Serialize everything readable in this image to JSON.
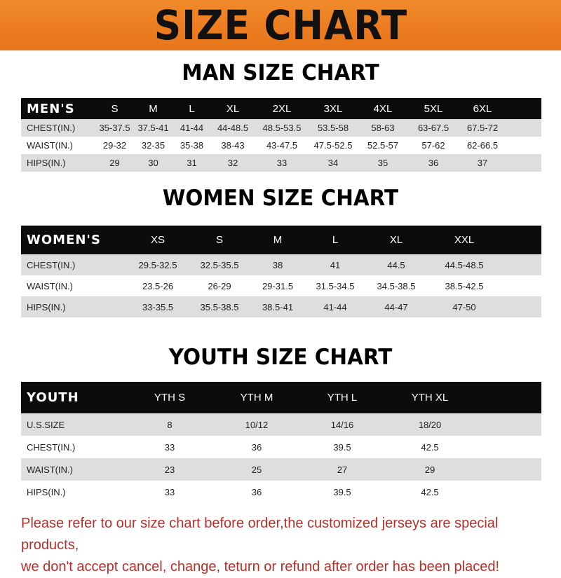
{
  "banner": {
    "title": "SIZE CHART"
  },
  "men": {
    "title": "MAN SIZE CHART",
    "header": [
      "MEN'S",
      "S",
      "M",
      "L",
      "XL",
      "2XL",
      "3XL",
      "4XL",
      "5XL",
      "6XL"
    ],
    "rows": [
      [
        "CHEST(IN.)",
        "35-37.5",
        "37.5-41",
        "41-44",
        "44-48.5",
        "48.5-53.5",
        "53.5-58",
        "58-63",
        "63-67.5",
        "67.5-72"
      ],
      [
        "WAIST(IN.)",
        "29-32",
        "32-35",
        "35-38",
        "38-43",
        "43-47.5",
        "47.5-52.5",
        "52.5-57",
        "57-62",
        "62-66.5"
      ],
      [
        "HIPS(IN.)",
        "29",
        "30",
        "31",
        "32",
        "33",
        "34",
        "35",
        "36",
        "37"
      ]
    ]
  },
  "women": {
    "title": "WOMEN SIZE CHART",
    "header": [
      "WOMEN'S",
      "XS",
      "S",
      "M",
      "L",
      "XL",
      "XXL"
    ],
    "rows": [
      [
        "CHEST(IN.)",
        "29.5-32.5",
        "32.5-35.5",
        "38",
        "41",
        "44.5",
        "44.5-48.5"
      ],
      [
        "WAIST(IN.)",
        "23.5-26",
        "26-29",
        "29-31.5",
        "31.5-34.5",
        "34.5-38.5",
        "38.5-42.5"
      ],
      [
        "HIPS(IN.)",
        "33-35.5",
        "35.5-38.5",
        "38.5-41",
        "41-44",
        "44-47",
        "47-50"
      ]
    ]
  },
  "youth": {
    "title": "YOUTH SIZE CHART",
    "header": [
      "YOUTH",
      "YTH S",
      "YTH M",
      "YTH L",
      "YTH XL"
    ],
    "rows": [
      [
        "U.S.SIZE",
        "8",
        "10/12",
        "14/16",
        "18/20"
      ],
      [
        "CHEST(IN.)",
        "33",
        "36",
        "39.5",
        "42.5"
      ],
      [
        "WAIST(IN.)",
        "23",
        "25",
        "27",
        "29"
      ],
      [
        "HIPS(IN.)",
        "33",
        "36",
        "39.5",
        "42.5"
      ]
    ]
  },
  "note": {
    "line1": "Please refer to our size chart before order,the customized jerseys are special products,",
    "line2": "we don't accept cancel, change, teturn or refund after order has been placed!"
  }
}
